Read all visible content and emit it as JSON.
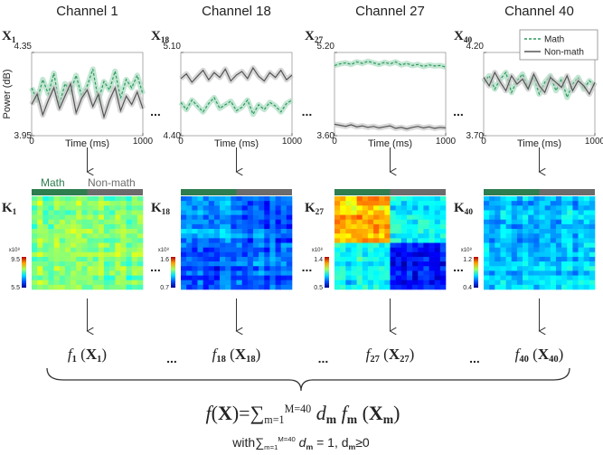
{
  "y_axis_label": "Power (dB)",
  "x_axis_label": "Time (ms)",
  "ellipsis": "...",
  "legend": [
    {
      "name": "Math",
      "color": "#2e9a5a"
    },
    {
      "name": "Non-math",
      "color": "#555555"
    }
  ],
  "kernel_header": {
    "left": "Math",
    "right": "Non-math",
    "left_color": "#2e7d4f",
    "right_color": "#6b6b6b"
  },
  "colorbar_scale": "x10⁸",
  "panels": [
    {
      "channel": "Channel 1",
      "x_label": [
        "X",
        "1"
      ],
      "k_label": [
        "K",
        "1"
      ],
      "f_label": [
        "f",
        "1",
        " (",
        "X",
        "1",
        ")"
      ],
      "ylim": [
        3.95,
        4.35
      ],
      "yticks": [
        3.95,
        4.35
      ],
      "xlim": [
        0,
        1000
      ],
      "xticks": [
        0,
        1000
      ],
      "colorbar": [
        9.5,
        5.5
      ],
      "x": [
        0,
        50,
        100,
        150,
        200,
        250,
        300,
        350,
        400,
        450,
        500,
        550,
        600,
        650,
        700,
        750,
        800,
        850,
        900,
        950,
        1000
      ],
      "series": [
        {
          "name": "Math",
          "values": [
            4.18,
            4.12,
            4.22,
            4.15,
            4.25,
            4.1,
            4.2,
            4.16,
            4.24,
            4.14,
            4.19,
            4.27,
            4.12,
            4.21,
            4.17,
            4.26,
            4.13,
            4.22,
            4.18,
            4.24,
            4.15
          ]
        },
        {
          "name": "Non-math",
          "values": [
            4.1,
            4.15,
            4.05,
            4.12,
            4.18,
            4.08,
            4.14,
            4.2,
            4.06,
            4.13,
            4.17,
            4.09,
            4.15,
            4.04,
            4.12,
            4.18,
            4.07,
            4.14,
            4.1,
            4.16,
            4.08
          ]
        }
      ]
    },
    {
      "channel": "Channel 18",
      "x_label": [
        "X",
        "18"
      ],
      "k_label": [
        "K",
        "18"
      ],
      "f_label": [
        "f",
        "18",
        " (",
        "X",
        "18",
        ")"
      ],
      "ylim": [
        4.4,
        5.1
      ],
      "yticks": [
        {
          "value": 4.4,
          "label": "4.40"
        },
        {
          "value": 5.1,
          "label": "5.10"
        }
      ],
      "xlim": [
        0,
        1000
      ],
      "xticks": [
        0,
        1000
      ],
      "colorbar": [
        1.6,
        0.7
      ],
      "x": [
        0,
        50,
        100,
        150,
        200,
        250,
        300,
        350,
        400,
        450,
        500,
        550,
        600,
        650,
        700,
        750,
        800,
        850,
        900,
        950,
        1000
      ],
      "series": [
        {
          "name": "Math",
          "values": [
            4.68,
            4.62,
            4.7,
            4.65,
            4.6,
            4.67,
            4.72,
            4.63,
            4.66,
            4.69,
            4.61,
            4.64,
            4.7,
            4.58,
            4.66,
            4.62,
            4.68,
            4.65,
            4.6,
            4.67,
            4.7
          ]
        },
        {
          "name": "Non-math",
          "values": [
            4.88,
            4.92,
            4.85,
            4.9,
            4.95,
            4.87,
            4.93,
            4.89,
            4.96,
            4.86,
            4.91,
            4.94,
            4.88,
            4.97,
            4.9,
            4.86,
            4.93,
            4.89,
            4.95,
            4.87,
            4.91
          ]
        }
      ]
    },
    {
      "channel": "Channel 27",
      "x_label": [
        "X",
        "27"
      ],
      "k_label": [
        "K",
        "27"
      ],
      "f_label": [
        "f",
        "27",
        " (",
        "X",
        "27",
        ")"
      ],
      "ylim": [
        3.6,
        5.2
      ],
      "yticks": [
        {
          "value": 3.6,
          "label": "3.60"
        },
        {
          "value": 5.2,
          "label": "5.20"
        }
      ],
      "xlim": [
        0,
        1000
      ],
      "xticks": [
        0,
        1000
      ],
      "colorbar": [
        1.4,
        0.5
      ],
      "x": [
        0,
        50,
        100,
        150,
        200,
        250,
        300,
        350,
        400,
        450,
        500,
        550,
        600,
        650,
        700,
        750,
        800,
        850,
        900,
        950,
        1000
      ],
      "series": [
        {
          "name": "Math",
          "values": [
            4.95,
            4.98,
            5.0,
            4.97,
            5.02,
            4.99,
            5.03,
            5.0,
            4.97,
            5.01,
            4.98,
            5.02,
            4.96,
            4.99,
            4.95,
            4.97,
            4.93,
            4.96,
            4.94,
            4.95,
            4.92
          ]
        },
        {
          "name": "Non-math",
          "values": [
            3.82,
            3.8,
            3.78,
            3.81,
            3.77,
            3.79,
            3.76,
            3.78,
            3.75,
            3.77,
            3.79,
            3.74,
            3.76,
            3.73,
            3.76,
            3.78,
            3.75,
            3.77,
            3.74,
            3.76,
            3.75
          ]
        }
      ]
    },
    {
      "channel": "Channel 40",
      "x_label": [
        "X",
        "40"
      ],
      "k_label": [
        "K",
        "40"
      ],
      "f_label": [
        "f",
        "40",
        " (",
        "X",
        "40",
        ")"
      ],
      "ylim": [
        3.7,
        4.2
      ],
      "yticks": [
        {
          "value": 3.7,
          "label": "3.70"
        },
        {
          "value": 4.2,
          "label": "4.20"
        }
      ],
      "xlim": [
        0,
        1000
      ],
      "xticks": [
        0,
        1000
      ],
      "colorbar": [
        1.2,
        0.4
      ],
      "x": [
        0,
        50,
        100,
        150,
        200,
        250,
        300,
        350,
        400,
        450,
        500,
        550,
        600,
        650,
        700,
        750,
        800,
        850,
        900,
        950,
        1000
      ],
      "series": [
        {
          "name": "Math",
          "values": [
            4.02,
            4.06,
            3.98,
            4.04,
            4.08,
            3.96,
            4.03,
            4.07,
            3.99,
            4.05,
            3.95,
            4.02,
            4.06,
            3.97,
            4.04,
            3.93,
            4.01,
            4.05,
            3.98,
            4.03,
            4.0
          ]
        },
        {
          "name": "Non-math",
          "values": [
            4.05,
            4.0,
            4.08,
            4.02,
            3.97,
            4.06,
            4.01,
            4.04,
            3.98,
            4.07,
            4.0,
            3.96,
            4.05,
            4.02,
            3.99,
            4.06,
            3.97,
            4.03,
            4.0,
            3.95,
            4.02
          ]
        }
      ]
    }
  ],
  "formula": [
    "f",
    "(",
    "X",
    ")",
    "=",
    "∑",
    "m=1",
    "M=40",
    " d",
    "m",
    " f",
    "m",
    " (",
    "X",
    "m",
    ")"
  ],
  "constraint": [
    "with",
    "∑",
    "m=1",
    "M=40",
    " d",
    "m",
    " = 1, d",
    "m",
    "≥0"
  ]
}
